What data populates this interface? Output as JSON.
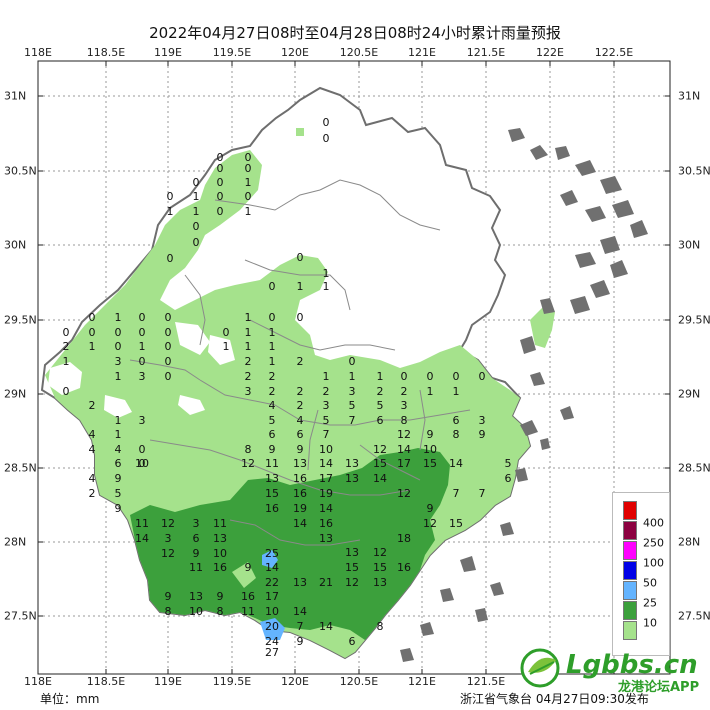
{
  "title": "2022年04月27日08时至04月28日08时24小时累计雨量预报",
  "lon_ticks": [
    "118E",
    "118.5E",
    "119E",
    "119.5E",
    "120E",
    "120.5E",
    "121E",
    "121.5E",
    "122E",
    "122.5E"
  ],
  "lat_ticks": [
    "31N",
    "30.5N",
    "30N",
    "29.5N",
    "29N",
    "28.5N",
    "28N",
    "27.5N"
  ],
  "unit_label": "单位：mm",
  "issuer": "浙江省气象台 04月27日09:30发布",
  "watermark": {
    "brand": "Lgbbs.cn",
    "subtitle": "龙港论坛APP"
  },
  "legend": [
    {
      "label": "400",
      "color": "#e10000"
    },
    {
      "label": "250",
      "color": "#8c0040"
    },
    {
      "label": "100",
      "color": "#ff00ff"
    },
    {
      "label": "50",
      "color": "#0000e6"
    },
    {
      "label": "25",
      "color": "#64b4ff"
    },
    {
      "label": "10",
      "color": "#3ca03c"
    },
    {
      "label": "",
      "color": "#a5e28c"
    }
  ],
  "colors": {
    "background": "#ffffff",
    "province": "#ffffff",
    "boundary": "#777777",
    "islands": "#707070",
    "grid": "#9a9a9a"
  },
  "station_values": {
    "north": [
      "0",
      "0",
      "0",
      "0",
      "0",
      "0",
      "0",
      "0",
      "1",
      "0",
      "1",
      "0",
      "0",
      "1",
      "1",
      "0",
      "1",
      "0",
      "0",
      "0"
    ],
    "west": [
      "0",
      "1",
      "0",
      "0",
      "0",
      "0",
      "0",
      "0",
      "0",
      "2",
      "1",
      "0",
      "1",
      "0",
      "1",
      "3",
      "0",
      "0",
      "1",
      "3",
      "0",
      "0",
      "2",
      "1",
      "3",
      "4",
      "1",
      "4",
      "4",
      "0",
      "6",
      "0",
      "4",
      "10",
      "9",
      "5",
      "9",
      "2"
    ],
    "central": [
      "0",
      "1",
      "0",
      "1",
      "1",
      "1",
      "0",
      "0",
      "0",
      "1",
      "1",
      "1",
      "1",
      "1",
      "2",
      "1",
      "2",
      "2",
      "2",
      "3",
      "2",
      "2",
      "4",
      "2",
      "5",
      "4",
      "5",
      "6",
      "6",
      "7",
      "8",
      "9",
      "9",
      "10",
      "12",
      "11",
      "13",
      "14",
      "13",
      "16",
      "17",
      "15",
      "16",
      "19",
      "16",
      "19",
      "14",
      "14",
      "16",
      "13"
    ],
    "east": [
      "0",
      "0",
      "0",
      "0",
      "1",
      "1",
      "1",
      "0",
      "2",
      "3",
      "2",
      "2",
      "1",
      "1",
      "3",
      "5",
      "5",
      "3",
      "7",
      "6",
      "8",
      "6",
      "3",
      "12",
      "9",
      "8",
      "12",
      "14",
      "10",
      "13",
      "15",
      "17",
      "15",
      "14",
      "13",
      "14",
      "9",
      "5",
      "6",
      "7",
      "12",
      "9",
      "7"
    ],
    "south": [
      "11",
      "12",
      "3",
      "11",
      "14",
      "3",
      "6",
      "13",
      "12",
      "9",
      "10",
      "25",
      "11",
      "16",
      "9",
      "14",
      "22",
      "13",
      "21",
      "12",
      "13",
      "9",
      "13",
      "9",
      "16",
      "17",
      "8",
      "10",
      "8",
      "11",
      "10",
      "14",
      "20",
      "7",
      "14",
      "24",
      "9",
      "27",
      "13",
      "12",
      "15",
      "15",
      "16",
      "18",
      "12",
      "15",
      "8",
      "6"
    ]
  }
}
